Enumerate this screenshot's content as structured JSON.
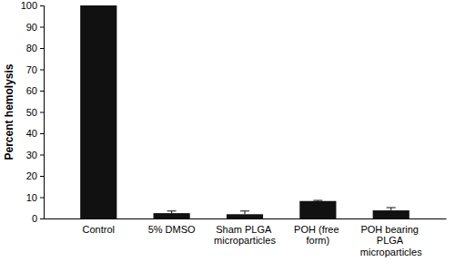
{
  "chart_data": {
    "type": "bar",
    "y_label": "Percent hemolysis",
    "categories": [
      "Control",
      "5% DMSO",
      "Sham PLGA microparticles",
      "POH (free form)",
      "POH bearing PLGA microparticles"
    ],
    "values": [
      100,
      2.5,
      2,
      8.2,
      3.8
    ],
    "errors": [
      0,
      1,
      1.5,
      0.3,
      1.3
    ],
    "color": "#111111",
    "ylim": [
      0,
      100
    ],
    "yticks": [
      0,
      10,
      20,
      30,
      40,
      50,
      60,
      70,
      80,
      90,
      100
    ],
    "grid": false
  }
}
